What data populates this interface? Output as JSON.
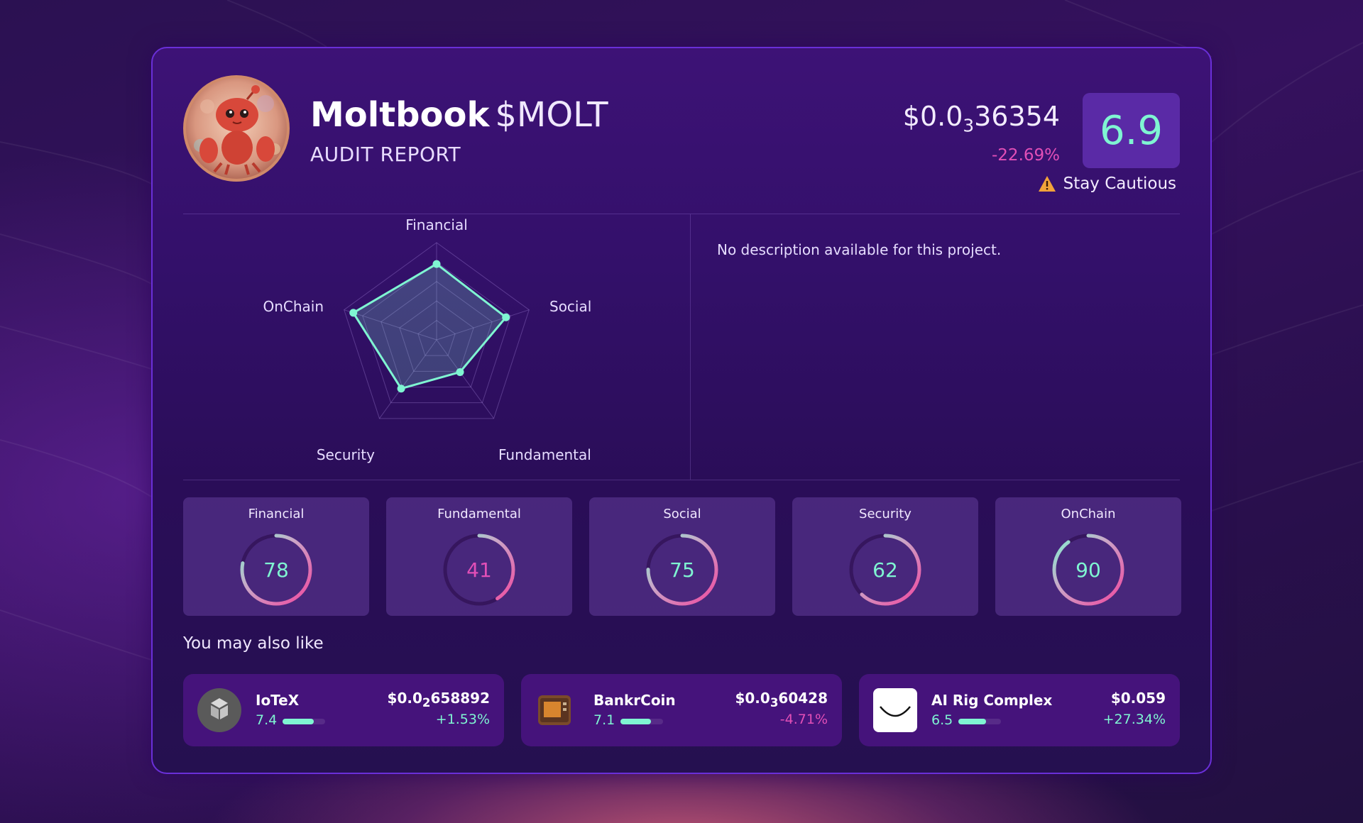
{
  "header": {
    "name": "Moltbook",
    "ticker": "$MOLT",
    "subtitle": "AUDIT REPORT",
    "price_prefix": "$0.0",
    "price_zeros": "3",
    "price_digits": "36354",
    "price_change": "-22.69%",
    "score": "6.9",
    "verdict": "Stay Cautious"
  },
  "description": "No description available for this project.",
  "radar": {
    "axes": [
      "Financial",
      "Social",
      "Fundamental",
      "Security",
      "OnChain"
    ],
    "values": [
      78,
      75,
      41,
      62,
      90
    ],
    "max": 100
  },
  "metrics": [
    {
      "label": "Financial",
      "value": 78
    },
    {
      "label": "Fundamental",
      "value": 41
    },
    {
      "label": "Social",
      "value": 75
    },
    {
      "label": "Security",
      "value": 62
    },
    {
      "label": "OnChain",
      "value": 90
    }
  ],
  "recommendations": {
    "heading": "You may also like",
    "items": [
      {
        "name": "IoTeX",
        "score": "7.4",
        "score_fraction": 0.74,
        "price_prefix": "$0.0",
        "price_zeros": "2",
        "price_digits": "658892",
        "change": "+1.53%",
        "direction": "up"
      },
      {
        "name": "BankrCoin",
        "score": "7.1",
        "score_fraction": 0.71,
        "price_prefix": "$0.0",
        "price_zeros": "3",
        "price_digits": "60428",
        "change": "-4.71%",
        "direction": "down"
      },
      {
        "name": "AI Rig Complex",
        "score": "6.5",
        "score_fraction": 0.65,
        "price_prefix": "$0.059",
        "price_zeros": "",
        "price_digits": "",
        "change": "+27.34%",
        "direction": "up"
      }
    ]
  },
  "colors": {
    "accent": "#7ff5d2",
    "negative": "#e24fb7",
    "score_box": "#5a2aa6"
  }
}
